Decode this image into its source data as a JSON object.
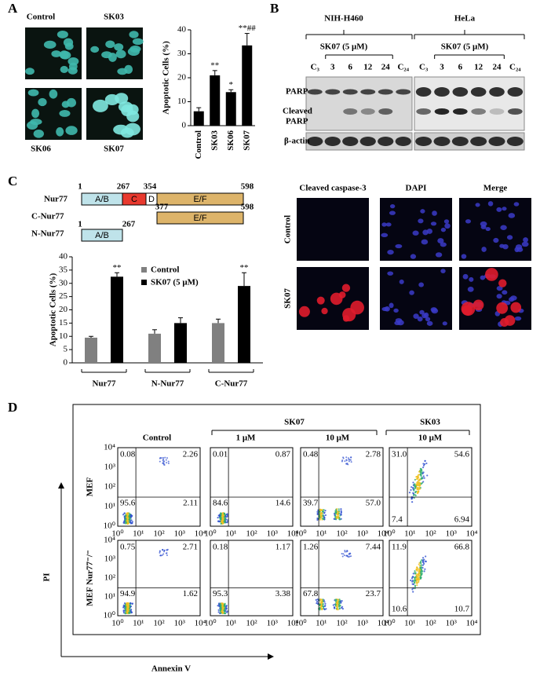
{
  "panels": {
    "a": "A",
    "b": "B",
    "c": "C",
    "d": "D"
  },
  "micrographs_a": {
    "labels": [
      "Control",
      "SK03",
      "SK06",
      "SK07"
    ]
  },
  "chart_data": [
    {
      "type": "bar",
      "categories": [
        "Control",
        "SK03",
        "SK06",
        "SK07"
      ],
      "values": [
        6,
        21,
        14,
        33.5
      ],
      "errors": [
        1.5,
        2,
        1,
        5
      ],
      "annotations": [
        null,
        "**",
        "*",
        "**##"
      ],
      "color": "#000000",
      "y_label": "Apoptotic Cells (%)",
      "ylim": [
        0,
        40
      ],
      "yticks": [
        0,
        10,
        20,
        30,
        40
      ]
    },
    {
      "type": "grouped-bar",
      "categories": [
        "Nur77",
        "N-Nur77",
        "C-Nur77"
      ],
      "series": [
        {
          "name": "Control",
          "color": "#808080",
          "values": [
            9.5,
            11,
            15
          ],
          "errors": [
            0.5,
            1.5,
            1.5
          ],
          "annotations": [
            null,
            null,
            null
          ]
        },
        {
          "name": "SK07 (5 μM)",
          "color": "#000000",
          "values": [
            32.5,
            15,
            29
          ],
          "errors": [
            1.5,
            2,
            5
          ],
          "annotations": [
            "**",
            null,
            "**"
          ]
        }
      ],
      "y_label": "Apoptotic Cells (%)",
      "legend": "upper-left",
      "ylim": [
        0,
        40
      ],
      "yticks": [
        0,
        5,
        10,
        15,
        20,
        25,
        30,
        35,
        40
      ]
    }
  ],
  "blot": {
    "cell_lines": [
      "NIH-H460",
      "HeLa"
    ],
    "treatment": "SK07 (5 μM)",
    "lanes": [
      "C₃",
      "3",
      "6",
      "12",
      "24",
      "C₂₄"
    ],
    "parp": "PARP",
    "cleaved_parp": [
      "Cleaved",
      "PARP"
    ],
    "actin": "β-actin"
  },
  "diagram": {
    "constructs": [
      "Nur77",
      "C-Nur77",
      "N-Nur77"
    ],
    "domains": [
      "A/B",
      "C",
      "D",
      "E/F"
    ],
    "positions": [
      1,
      267,
      354,
      598,
      377
    ]
  },
  "micrographs_c": {
    "columns": [
      "Cleaved caspase-3",
      "DAPI",
      "Merge"
    ],
    "rows": [
      "Control",
      "SK07"
    ]
  },
  "flow": {
    "control": "Control",
    "groups": [
      {
        "label": "SK07",
        "conditions": [
          "1 μM",
          "10 μM"
        ]
      },
      {
        "label": "SK03",
        "conditions": [
          "10 μM"
        ]
      }
    ],
    "rows": [
      "MEF",
      "MEF Nur77⁻/⁻"
    ],
    "ticks": [
      "10⁰",
      "10¹",
      "10²",
      "10³",
      "10⁴"
    ],
    "quadrants": [
      [
        [
          "0.08",
          "2.26",
          "95.6",
          "2.11"
        ],
        [
          "0.01",
          "0.87",
          "84.6",
          "14.6"
        ],
        [
          "0.48",
          "2.78",
          "39.7",
          "57.0"
        ],
        [
          "31.0",
          "54.6",
          "7.4",
          "6.94"
        ]
      ],
      [
        [
          "0.75",
          "2.71",
          "94.9",
          "1.62"
        ],
        [
          "0.18",
          "1.17",
          "95.3",
          "3.38"
        ],
        [
          "1.26",
          "7.44",
          "67.8",
          "23.7"
        ],
        [
          "11.9",
          "66.8",
          "10.6",
          "10.7"
        ]
      ]
    ],
    "y_label": "PI",
    "x_label": "Annexin V"
  }
}
